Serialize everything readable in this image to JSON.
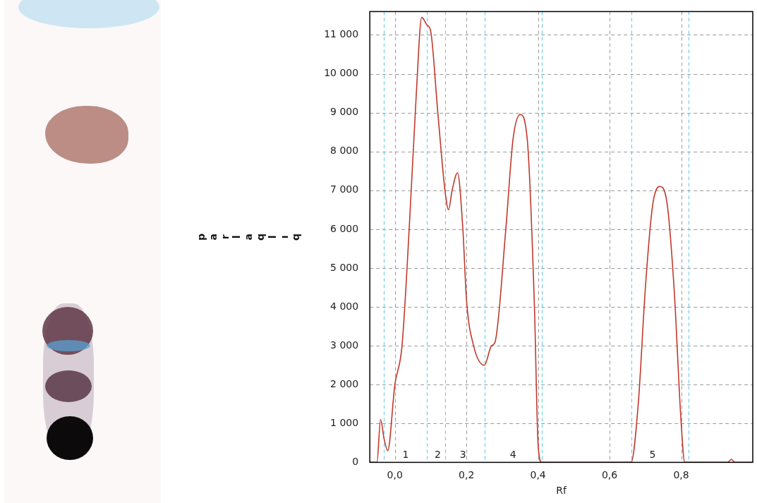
{
  "chart_data": {
    "type": "line",
    "x_label": "Rf",
    "y_label": "parlaqlıq",
    "x": [
      -0.07,
      -0.05,
      -0.04,
      -0.03,
      -0.02,
      0.0,
      0.02,
      0.04,
      0.06,
      0.075,
      0.09,
      0.1,
      0.12,
      0.14,
      0.15,
      0.16,
      0.175,
      0.19,
      0.2,
      0.22,
      0.25,
      0.27,
      0.28,
      0.31,
      0.33,
      0.35,
      0.37,
      0.39,
      0.4,
      0.41,
      0.66,
      0.68,
      0.7,
      0.72,
      0.74,
      0.76,
      0.78,
      0.8,
      0.81,
      0.93,
      0.94,
      0.95,
      1.0
    ],
    "values": [
      0,
      0,
      1100,
      600,
      300,
      2000,
      3000,
      6000,
      9500,
      11450,
      11250,
      11100,
      9000,
      7000,
      6500,
      7000,
      7450,
      6000,
      4200,
      3000,
      2500,
      3000,
      3100,
      6000,
      8300,
      8950,
      8300,
      4000,
      500,
      0,
      0,
      1500,
      4500,
      6600,
      7100,
      6700,
      4500,
      1000,
      0,
      0,
      80,
      0,
      0
    ],
    "color": "#c0392b",
    "xlim": [
      -0.07,
      1.0
    ],
    "ylim": [
      0,
      11600
    ],
    "xticks": [
      {
        "value": 0,
        "label": "0,0"
      },
      {
        "value": 0.2,
        "label": "0,2"
      },
      {
        "value": 0.4,
        "label": "0,4"
      },
      {
        "value": 0.6,
        "label": "0,6"
      },
      {
        "value": 0.8,
        "label": "0,8"
      }
    ],
    "yticks": [
      0,
      {
        "value": 1000,
        "label": "1 000"
      },
      {
        "value": 2000,
        "label": "2 000"
      },
      {
        "value": 3000,
        "label": "3 000"
      },
      {
        "value": 4000,
        "label": "4 000"
      },
      {
        "value": 5000,
        "label": "5 000"
      },
      {
        "value": 6000,
        "label": "6 000"
      },
      {
        "value": 7000,
        "label": "7 000"
      },
      {
        "value": 8000,
        "label": "8 000"
      },
      {
        "value": 9000,
        "label": "9 000"
      },
      {
        "value": 10000,
        "label": "10 000"
      },
      {
        "value": 11000,
        "label": "11 000"
      }
    ],
    "grid": true,
    "peak_boundaries": [
      -0.03,
      0.09,
      0.14,
      0.25,
      0.41,
      0.66,
      0.82
    ],
    "peak_labels": [
      {
        "text": "1",
        "x": 0.03
      },
      {
        "text": "2",
        "x": 0.12
      },
      {
        "text": "3",
        "x": 0.19
      },
      {
        "text": "4",
        "x": 0.33
      },
      {
        "text": "5",
        "x": 0.72
      }
    ]
  }
}
